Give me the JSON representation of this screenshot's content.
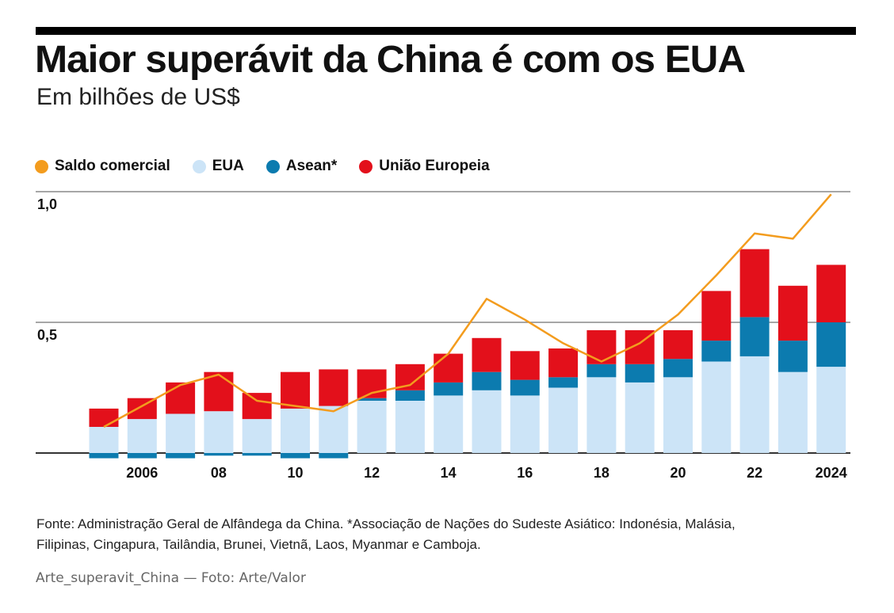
{
  "header": {
    "title": "Maior superávit da China é com os EUA",
    "subtitle": "Em bilhões de US$"
  },
  "legend": [
    {
      "label": "Saldo comercial",
      "color": "#F39C1E"
    },
    {
      "label": "EUA",
      "color": "#CCE4F7"
    },
    {
      "label": "Asean*",
      "color": "#0C7BAF"
    },
    {
      "label": "União Europeia",
      "color": "#E3101B"
    }
  ],
  "chart_data": {
    "type": "bar",
    "stacked": true,
    "years": [
      2005,
      2006,
      2007,
      2008,
      2009,
      2010,
      2011,
      2012,
      2013,
      2014,
      2015,
      2016,
      2017,
      2018,
      2019,
      2020,
      2021,
      2022,
      2023,
      2024
    ],
    "x_tick_labels": [
      "2006",
      "08",
      "10",
      "12",
      "14",
      "16",
      "18",
      "20",
      "22",
      "2024"
    ],
    "y_tick_labels": [
      "1,0",
      "0,5"
    ],
    "ylim": [
      -0.02,
      1.0
    ],
    "gridlines": [
      1.0,
      0.5,
      0
    ],
    "series": [
      {
        "name": "EUA",
        "color": "#CCE4F7",
        "values": [
          0.1,
          0.13,
          0.15,
          0.16,
          0.13,
          0.17,
          0.18,
          0.2,
          0.2,
          0.22,
          0.24,
          0.22,
          0.25,
          0.29,
          0.27,
          0.29,
          0.35,
          0.37,
          0.31,
          0.33
        ]
      },
      {
        "name": "Asean*",
        "color": "#0C7BAF",
        "values": [
          -0.02,
          -0.02,
          -0.02,
          -0.01,
          -0.01,
          -0.02,
          -0.02,
          0.01,
          0.04,
          0.05,
          0.07,
          0.06,
          0.04,
          0.05,
          0.07,
          0.07,
          0.08,
          0.15,
          0.12,
          0.17
        ]
      },
      {
        "name": "União Europeia",
        "color": "#E3101B",
        "values": [
          0.07,
          0.08,
          0.12,
          0.15,
          0.1,
          0.14,
          0.14,
          0.11,
          0.1,
          0.11,
          0.13,
          0.11,
          0.11,
          0.13,
          0.13,
          0.11,
          0.19,
          0.26,
          0.21,
          0.22
        ]
      }
    ],
    "line": {
      "name": "Saldo comercial",
      "color": "#F39C1E",
      "values": [
        0.1,
        0.18,
        0.26,
        0.3,
        0.2,
        0.18,
        0.16,
        0.23,
        0.26,
        0.38,
        0.59,
        0.51,
        0.42,
        0.35,
        0.42,
        0.53,
        0.68,
        0.84,
        0.82,
        0.99
      ]
    }
  },
  "footnote": {
    "line1": "Fonte: Administração Geral de Alfândega da China. *Associação de Nações do Sudeste Asiático: Indonésia, Malásia,",
    "line2": "Filipinas, Cingapura, Tailândia, Brunei, Vietnã, Laos, Myanmar e Camboja."
  },
  "caption": "Arte_superavit_China — Foto: Arte/Valor"
}
